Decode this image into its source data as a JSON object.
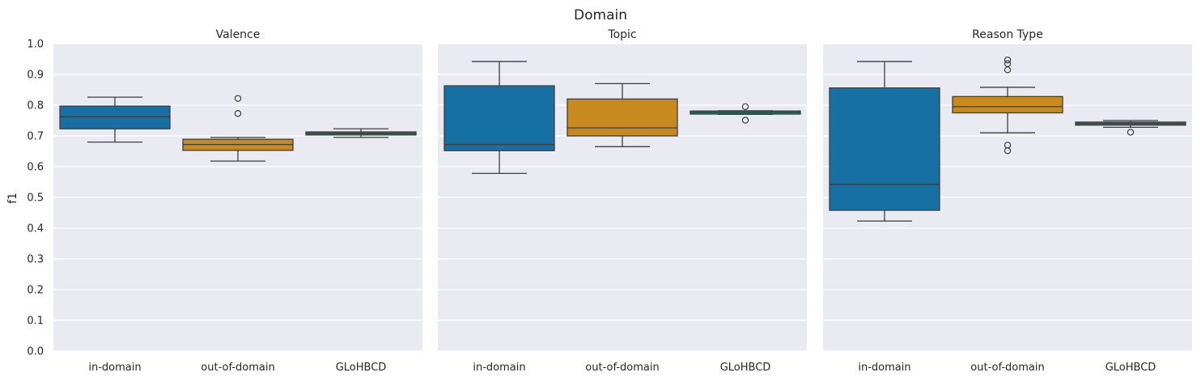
{
  "chart_data": {
    "type": "box",
    "suptitle": "Domain",
    "ylabel": "f1",
    "ylim": [
      0,
      1.0
    ],
    "yticks": [
      0.0,
      0.1,
      0.2,
      0.3,
      0.4,
      0.5,
      0.6,
      0.7,
      0.8,
      0.9,
      1.0
    ],
    "ytick_labels": [
      "0.0",
      "0.1",
      "0.2",
      "0.3",
      "0.4",
      "0.5",
      "0.6",
      "0.7",
      "0.8",
      "0.9",
      "1.0"
    ],
    "grid": true,
    "categories": [
      "in-domain",
      "out-of-domain",
      "GLoHBCD"
    ],
    "colors": {
      "in-domain": "#1670a3",
      "out-of-domain": "#c88a1f",
      "GLoHBCD": "#16856d",
      "background": "#eaeaf2",
      "grid": "#ffffff",
      "line": "#3d3d3d"
    },
    "panels": [
      {
        "title": "Valence",
        "boxes": [
          {
            "category": "in-domain",
            "whisker_low": 0.68,
            "q1": 0.723,
            "median": 0.762,
            "q3": 0.797,
            "whisker_high": 0.826,
            "outliers": []
          },
          {
            "category": "out-of-domain",
            "whisker_low": 0.618,
            "q1": 0.653,
            "median": 0.672,
            "q3": 0.689,
            "whisker_high": 0.695,
            "outliers": [
              0.773,
              0.822
            ]
          },
          {
            "category": "GLoHBCD",
            "whisker_low": 0.695,
            "q1": 0.703,
            "median": 0.708,
            "q3": 0.713,
            "whisker_high": 0.723,
            "outliers": []
          }
        ]
      },
      {
        "title": "Topic",
        "boxes": [
          {
            "category": "in-domain",
            "whisker_low": 0.578,
            "q1": 0.652,
            "median": 0.672,
            "q3": 0.863,
            "whisker_high": 0.942,
            "outliers": []
          },
          {
            "category": "out-of-domain",
            "whisker_low": 0.665,
            "q1": 0.7,
            "median": 0.726,
            "q3": 0.82,
            "whisker_high": 0.87,
            "outliers": []
          },
          {
            "category": "GLoHBCD",
            "whisker_low": 0.77,
            "q1": 0.771,
            "median": 0.776,
            "q3": 0.781,
            "whisker_high": 0.782,
            "outliers": [
              0.751,
              0.795
            ]
          }
        ]
      },
      {
        "title": "Reason Type",
        "boxes": [
          {
            "category": "in-domain",
            "whisker_low": 0.423,
            "q1": 0.458,
            "median": 0.542,
            "q3": 0.856,
            "whisker_high": 0.942,
            "outliers": []
          },
          {
            "category": "out-of-domain",
            "whisker_low": 0.71,
            "q1": 0.775,
            "median": 0.795,
            "q3": 0.828,
            "whisker_high": 0.858,
            "outliers": [
              0.652,
              0.67,
              0.915,
              0.935,
              0.947
            ]
          },
          {
            "category": "GLoHBCD",
            "whisker_low": 0.728,
            "q1": 0.735,
            "median": 0.74,
            "q3": 0.745,
            "whisker_high": 0.75,
            "outliers": [
              0.712
            ]
          }
        ]
      }
    ]
  }
}
